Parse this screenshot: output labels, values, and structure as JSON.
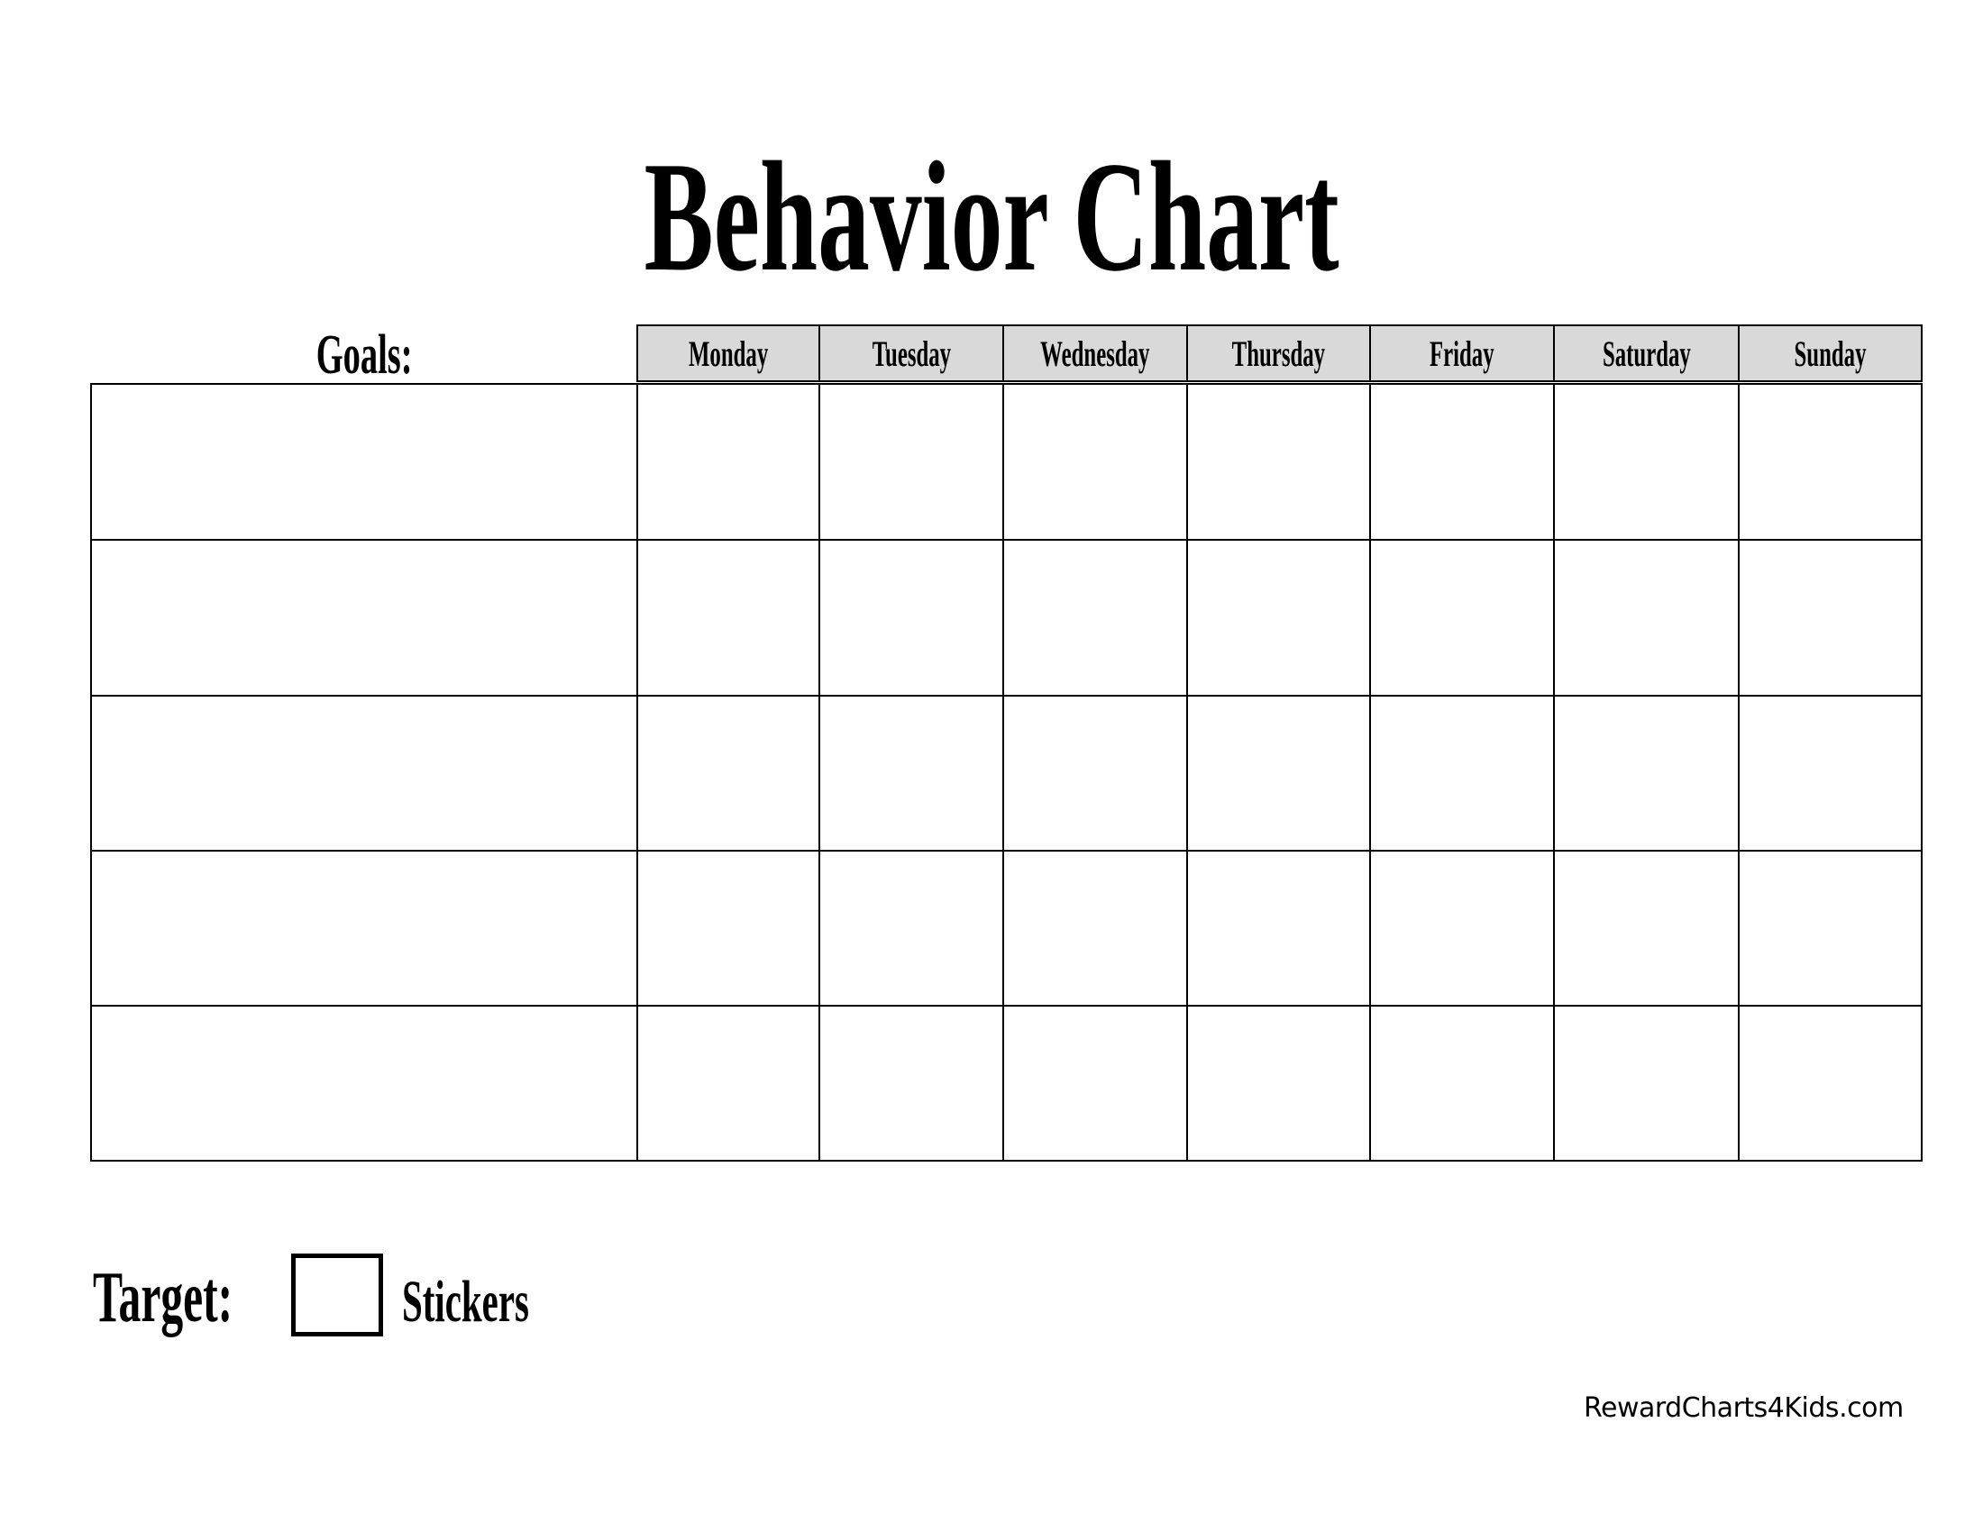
{
  "title": "Behavior Chart",
  "goals_label": "Goals:",
  "days": [
    "Monday",
    "Tuesday",
    "Wednesday",
    "Thursday",
    "Friday",
    "Saturday",
    "Sunday"
  ],
  "goal_rows": [
    "",
    "",
    "",
    "",
    ""
  ],
  "header_fill_color": "#d9d9d9",
  "target_label": "Target:",
  "target_value": "",
  "stickers_label": "Stickers",
  "footer": "RewardCharts4Kids.com"
}
